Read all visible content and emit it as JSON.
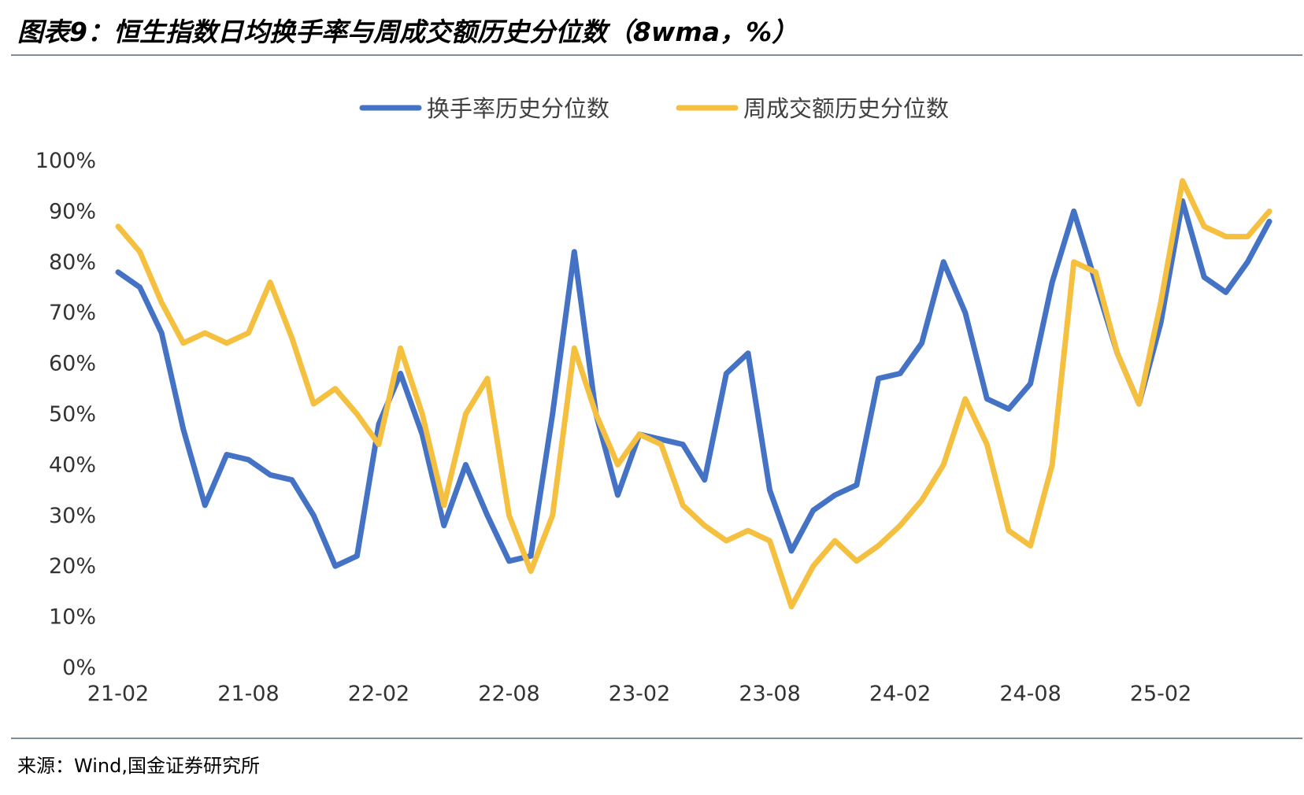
{
  "title": "图表9：恒生指数日均换手率与周成交额历史分位数（8wma，%）",
  "source": "来源：Wind,国金证券研究所",
  "chart_data": {
    "type": "line",
    "xlabel": "",
    "ylabel": "",
    "ylim": [
      0,
      100
    ],
    "y_ticks": [
      "0%",
      "10%",
      "20%",
      "30%",
      "40%",
      "50%",
      "60%",
      "70%",
      "80%",
      "90%",
      "100%"
    ],
    "x_range": [
      "2021-02",
      "2025-07"
    ],
    "x_ticks": [
      "21-02",
      "21-08",
      "22-02",
      "22-08",
      "23-02",
      "23-08",
      "24-02",
      "24-08",
      "25-02"
    ],
    "legend_position": "top-center",
    "grid": false,
    "series": [
      {
        "name": "换手率历史分位数",
        "color": "#4472C4",
        "points": [
          [
            "2021-02",
            78
          ],
          [
            "2021-03",
            75
          ],
          [
            "2021-04",
            66
          ],
          [
            "2021-05",
            47
          ],
          [
            "2021-06",
            32
          ],
          [
            "2021-07",
            42
          ],
          [
            "2021-08",
            41
          ],
          [
            "2021-09",
            38
          ],
          [
            "2021-10",
            37
          ],
          [
            "2021-11",
            30
          ],
          [
            "2021-12",
            20
          ],
          [
            "2022-01",
            22
          ],
          [
            "2022-02",
            48
          ],
          [
            "2022-03",
            58
          ],
          [
            "2022-04",
            46
          ],
          [
            "2022-05",
            28
          ],
          [
            "2022-06",
            40
          ],
          [
            "2022-07",
            30
          ],
          [
            "2022-08",
            21
          ],
          [
            "2022-09",
            22
          ],
          [
            "2022-10",
            50
          ],
          [
            "2022-11",
            82
          ],
          [
            "2022-12",
            50
          ],
          [
            "2023-01",
            34
          ],
          [
            "2023-02",
            46
          ],
          [
            "2023-03",
            45
          ],
          [
            "2023-04",
            44
          ],
          [
            "2023-05",
            37
          ],
          [
            "2023-06",
            58
          ],
          [
            "2023-07",
            62
          ],
          [
            "2023-08",
            35
          ],
          [
            "2023-09",
            23
          ],
          [
            "2023-10",
            31
          ],
          [
            "2023-11",
            34
          ],
          [
            "2023-12",
            36
          ],
          [
            "2024-01",
            57
          ],
          [
            "2024-02",
            58
          ],
          [
            "2024-03",
            64
          ],
          [
            "2024-04",
            80
          ],
          [
            "2024-05",
            70
          ],
          [
            "2024-06",
            53
          ],
          [
            "2024-07",
            51
          ],
          [
            "2024-08",
            56
          ],
          [
            "2024-09",
            76
          ],
          [
            "2024-10",
            90
          ],
          [
            "2024-11",
            76
          ],
          [
            "2024-12",
            62
          ],
          [
            "2025-01",
            52
          ],
          [
            "2025-02",
            68
          ],
          [
            "2025-03",
            92
          ],
          [
            "2025-04",
            77
          ],
          [
            "2025-05",
            74
          ],
          [
            "2025-06",
            80
          ],
          [
            "2025-07",
            88
          ]
        ]
      },
      {
        "name": "周成交额历史分位数",
        "color": "#F5BF3F",
        "points": [
          [
            "2021-02",
            87
          ],
          [
            "2021-03",
            82
          ],
          [
            "2021-04",
            72
          ],
          [
            "2021-05",
            64
          ],
          [
            "2021-06",
            66
          ],
          [
            "2021-07",
            64
          ],
          [
            "2021-08",
            66
          ],
          [
            "2021-09",
            76
          ],
          [
            "2021-10",
            65
          ],
          [
            "2021-11",
            52
          ],
          [
            "2021-12",
            55
          ],
          [
            "2022-01",
            50
          ],
          [
            "2022-02",
            44
          ],
          [
            "2022-03",
            63
          ],
          [
            "2022-04",
            50
          ],
          [
            "2022-05",
            32
          ],
          [
            "2022-06",
            50
          ],
          [
            "2022-07",
            57
          ],
          [
            "2022-08",
            30
          ],
          [
            "2022-09",
            19
          ],
          [
            "2022-10",
            30
          ],
          [
            "2022-11",
            63
          ],
          [
            "2022-12",
            50
          ],
          [
            "2023-01",
            40
          ],
          [
            "2023-02",
            46
          ],
          [
            "2023-03",
            44
          ],
          [
            "2023-04",
            32
          ],
          [
            "2023-05",
            28
          ],
          [
            "2023-06",
            25
          ],
          [
            "2023-07",
            27
          ],
          [
            "2023-08",
            25
          ],
          [
            "2023-09",
            12
          ],
          [
            "2023-10",
            20
          ],
          [
            "2023-11",
            25
          ],
          [
            "2023-12",
            21
          ],
          [
            "2024-01",
            24
          ],
          [
            "2024-02",
            28
          ],
          [
            "2024-03",
            33
          ],
          [
            "2024-04",
            40
          ],
          [
            "2024-05",
            53
          ],
          [
            "2024-06",
            44
          ],
          [
            "2024-07",
            27
          ],
          [
            "2024-08",
            24
          ],
          [
            "2024-09",
            40
          ],
          [
            "2024-10",
            80
          ],
          [
            "2024-11",
            78
          ],
          [
            "2024-12",
            62
          ],
          [
            "2025-01",
            52
          ],
          [
            "2025-02",
            72
          ],
          [
            "2025-03",
            96
          ],
          [
            "2025-04",
            87
          ],
          [
            "2025-05",
            85
          ],
          [
            "2025-06",
            85
          ],
          [
            "2025-07",
            90
          ]
        ]
      }
    ]
  }
}
